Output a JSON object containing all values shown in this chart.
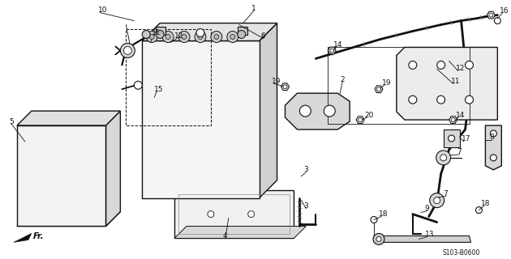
{
  "bg_color": "#ffffff",
  "line_color": "#111111",
  "diagram_code": "S103-B0600"
}
